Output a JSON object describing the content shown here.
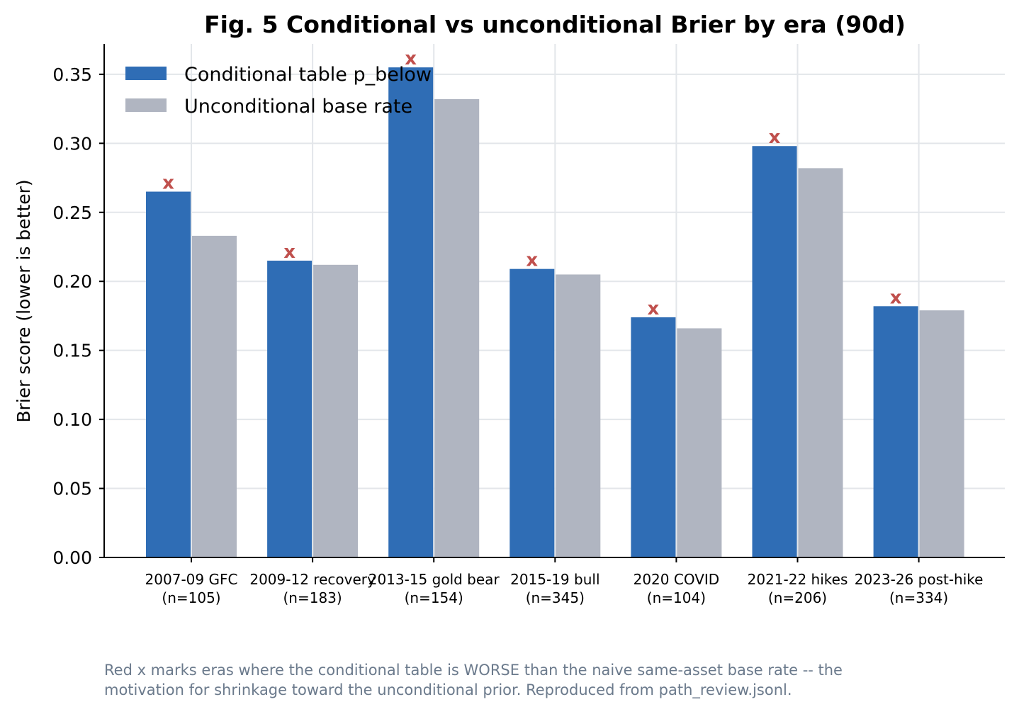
{
  "chart_data": {
    "type": "bar",
    "title": "Fig. 5  Conditional vs unconditional Brier by era (90d)",
    "ylabel": "Brier score  (lower is better)",
    "xlabel": "",
    "ylim": [
      0,
      0.372
    ],
    "yticks": [
      "0.00",
      "0.05",
      "0.10",
      "0.15",
      "0.20",
      "0.25",
      "0.30",
      "0.35"
    ],
    "grid": true,
    "legend_position": "top-left",
    "categories": [
      {
        "label": "2007-09 GFC",
        "n": "(n=105)"
      },
      {
        "label": "2009-12 recovery",
        "n": "(n=183)"
      },
      {
        "label": "2013-15 gold bear",
        "n": "(n=154)"
      },
      {
        "label": "2015-19 bull",
        "n": "(n=345)"
      },
      {
        "label": "2020 COVID",
        "n": "(n=104)"
      },
      {
        "label": "2021-22 hikes",
        "n": "(n=206)"
      },
      {
        "label": "2023-26 post-hike",
        "n": "(n=334)"
      }
    ],
    "series": [
      {
        "name": "Conditional table  p_below",
        "color": "#2f6db5",
        "values": [
          0.265,
          0.215,
          0.355,
          0.209,
          0.174,
          0.298,
          0.182
        ]
      },
      {
        "name": "Unconditional base rate",
        "color": "#b0b5c1",
        "values": [
          0.233,
          0.212,
          0.332,
          0.205,
          0.166,
          0.282,
          0.179
        ]
      }
    ],
    "worse_marker": {
      "text": "x",
      "color": "#c0504d",
      "series": 0,
      "flags": [
        true,
        true,
        true,
        true,
        true,
        true,
        true
      ]
    }
  },
  "caption": "Red x marks eras where the conditional table is WORSE than the naive same-asset base rate -- the\nmotivation for shrinkage toward the unconditional prior. Reproduced from path_review.jsonl."
}
